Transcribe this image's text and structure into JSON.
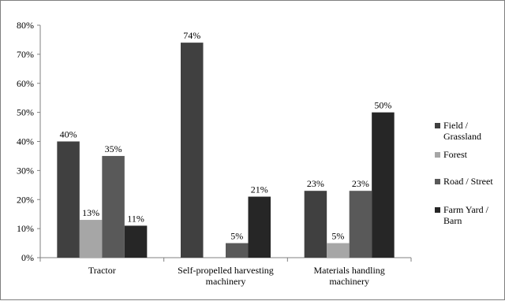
{
  "chart_data": {
    "type": "bar",
    "title": "",
    "xlabel": "",
    "ylabel": "",
    "ylim": [
      0,
      80
    ],
    "y_ticks": [
      "0%",
      "10%",
      "20%",
      "30%",
      "40%",
      "50%",
      "60%",
      "70%",
      "80%"
    ],
    "y_tick_values": [
      0,
      10,
      20,
      30,
      40,
      50,
      60,
      70,
      80
    ],
    "grid": false,
    "legend_position": "right",
    "categories": [
      [
        "Tractor"
      ],
      [
        "Self-propelled harvesting",
        "machinery"
      ],
      [
        "Materials handling",
        "machinery"
      ]
    ],
    "series": [
      {
        "name": [
          "Field /",
          "Grassland"
        ],
        "color": "#404040",
        "values": [
          40,
          74,
          23
        ],
        "labels": [
          "40%",
          "74%",
          "23%"
        ]
      },
      {
        "name": [
          "Forest"
        ],
        "color": "#a6a6a6",
        "values": [
          13,
          0,
          5
        ],
        "labels": [
          "13%",
          "",
          "5%"
        ]
      },
      {
        "name": [
          "Road / Street"
        ],
        "color": "#595959",
        "values": [
          35,
          5,
          23
        ],
        "labels": [
          "35%",
          "5%",
          "23%"
        ]
      },
      {
        "name": [
          "Farm Yard /",
          "Barn"
        ],
        "color": "#262626",
        "values": [
          11,
          21,
          50
        ],
        "labels": [
          "11%",
          "21%",
          "50%"
        ]
      }
    ]
  }
}
